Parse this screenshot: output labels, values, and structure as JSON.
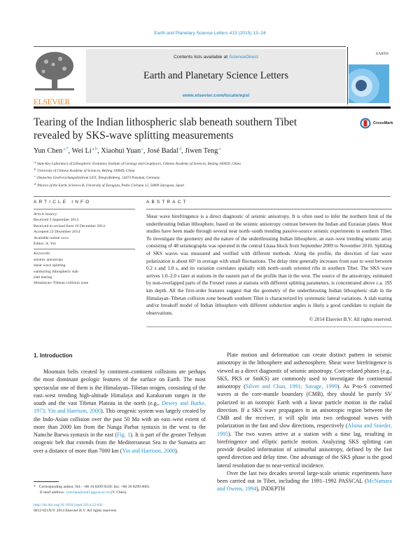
{
  "header": {
    "citation": "Earth and Planetary Science Letters 413 (2015) 13–24",
    "contents_prefix": "Contents lists available at ",
    "contents_link": "ScienceDirect",
    "journal_title": "Earth and Planetary Science Letters",
    "journal_url": "www.elsevier.com/locate/epsl",
    "publisher_logo": "ELSEVIER",
    "cover_text": "EARTH",
    "crossmark": "CrossMark",
    "colors": {
      "link": "#2a8fc6",
      "publisher": "#f07f21"
    }
  },
  "article": {
    "title": "Tearing of the Indian lithospheric slab beneath southern Tibet revealed by SKS-wave splitting measurements",
    "authors": [
      {
        "name": "Yun Chen",
        "sup": "a,*"
      },
      {
        "name": "Wei Li",
        "sup": "a,b"
      },
      {
        "name": "Xiaohui Yuan",
        "sup": "c"
      },
      {
        "name": "José Badal",
        "sup": "d"
      },
      {
        "name": "Jiwen Teng",
        "sup": "a"
      }
    ],
    "affiliations": [
      {
        "key": "a",
        "text": "State Key Laboratory of Lithospheric Evolution, Institute of Geology and Geophysics, Chinese Academy of Sciences, Beijing 100029, China"
      },
      {
        "key": "b",
        "text": "University of Chinese Academy of Sciences, Beijing 100049, China"
      },
      {
        "key": "c",
        "text": "Deutsches GeoForschungsZentrum GFZ, Telegrafenberg, 14473 Potsdam, Germany"
      },
      {
        "key": "d",
        "text": "Physics of the Earth, Sciences B, University of Zaragoza, Pedro Cerbuna 12, 50009 Zaragoza, Spain"
      }
    ]
  },
  "article_info": {
    "heading": "ARTICLE INFO",
    "history_label": "Article history:",
    "history": [
      "Received 3 September 2014",
      "Received in revised form 16 December 2014",
      "Accepted 22 December 2014",
      "Available online xxxx",
      "Editor: A. Yin"
    ],
    "keywords_label": "Keywords:",
    "keywords": [
      "seismic anisotropy",
      "shear wave splitting",
      "subducting lithospheric slab",
      "slab tearing",
      "Himalayan–Tibetan collision zone"
    ]
  },
  "abstract": {
    "heading": "ABSTRACT",
    "text": "Shear wave birefringence is a direct diagnostic of seismic anisotropy. It is often used to infer the northern limit of the underthrusting Indian lithosphere, based on the seismic anisotropy contrast between the Indian and Eurasian plates. Most studies have been made through several near north–south trending passive-source seismic experiments in southern Tibet. To investigate the geometry and the nature of the underthrusting Indian lithosphere, an east–west trending seismic array consisting of 48 seismographs was operated in the central Lhasa block from September 2009 to November 2010. Splitting of SKS waves was measured and verified with different methods. Along the profile, the direction of fast wave polarization is about 60° in average with small fluctuations. The delay time generally increases from east to west between 0.2 s and 1.0 s, and its variation correlates spatially with north–south oriented rifts in southern Tibet. The SKS wave arrives 1.0–2.0 s later at stations in the eastern part of the profile than in the west. The source of the anisotropy, estimated by non-overlapped parts of the Fresnel zones at stations with different splitting parameters, is concentrated above c.a. 195 km depth. All the first-order features suggest that the geometry of the underthrusting Indian lithospheric slab in the Himalayan–Tibetan collision zone beneath southern Tibet is characterized by systematic lateral variations. A slab tearing and/or breakoff model of Indian lithosphere with different subduction angles is likely a good candidate to explain the observations.",
    "copyright": "© 2014 Elsevier B.V. All rights reserved."
  },
  "intro": {
    "heading": "1. Introduction",
    "p1": [
      "Mountain belts created by continent–continent collisions are perhaps the most dominant geologic features of the surface on Earth. The most spectacular one of them is the Himalayan–Tibetan orogen, consisting of the east–west trending high-altitude Himalaya and Karakorum ranges in the south and the vast Tibetan Plateau in the north (e.g., ",
      "Dewey and Burke, 1973; Yin and Harrison, 2000",
      "). This orogenic system was largely created by the Indo-Asian collision over the past 50 Ma with an east–west extent of more than 2000 km from the Nanga Parbat syntaxis in the west to the Namche Barwa syntaxis in the east (",
      "Fig. 1",
      "). It is part of the greater Tethyan orogenic belt that extends from the Mediterranean Sea to the Sumatra arc over a distance of more than 7000 km (",
      "Yin and Harrison, 2000",
      ")."
    ],
    "p2": [
      "Plate motion and deformation can create distinct pattern in seismic anisotropy in the lithosphere and asthenosphere. Shear wave birefringence is viewed as a direct diagnostic of seismic anisotropy. Core-related phases (e.g., SKS, PKS or SmKS) are commonly used to investigate the continental anisotropy (",
      "Silver and Chan, 1991; Savage, 1999",
      "). As P-to-S converted waves at the core-mantle boundary (CMB), they should be purely SV polarized in an isotropic Earth with a linear particle motion in the radial direction. If a SKS wave propagates in an anisotropic region between the CMB and the receiver, it will split into two orthogonal waves with polarization in the fast and slow directions, respectively (",
      "Alsina and Snieder, 1995",
      "). The two waves arrive at a station with a time lag, resulting in birefringence and elliptic particle motion. Analyzing SKS splitting can provide detailed information of azimuthal anisotropy, defined by the fast speed direction and delay time. One advantage of the SKS phase is the good lateral resolution due to near-vertical incidence."
    ],
    "p3": [
      "Over the last two decades several large-scale seismic experiments have been carried out in Tibet, including the 1991–1992 PASSCAL (",
      "McNamara and Owens, 1994",
      "), INDEPTH"
    ]
  },
  "footnote": {
    "mark": "*",
    "corresponding": "Corresponding author. Tel.: +86 10 8299 8339; fax: +86 10 8299 8001.",
    "email_label": "E-mail address: ",
    "email": "yunchen@mail.iggcas.ac.cn",
    "email_suffix": " (Y. Chen).",
    "doi": "http://dx.doi.org/10.1016/j.epsl.2014.12.041",
    "issn": "0012-821X/© 2014 Elsevier B.V. All rights reserved."
  }
}
